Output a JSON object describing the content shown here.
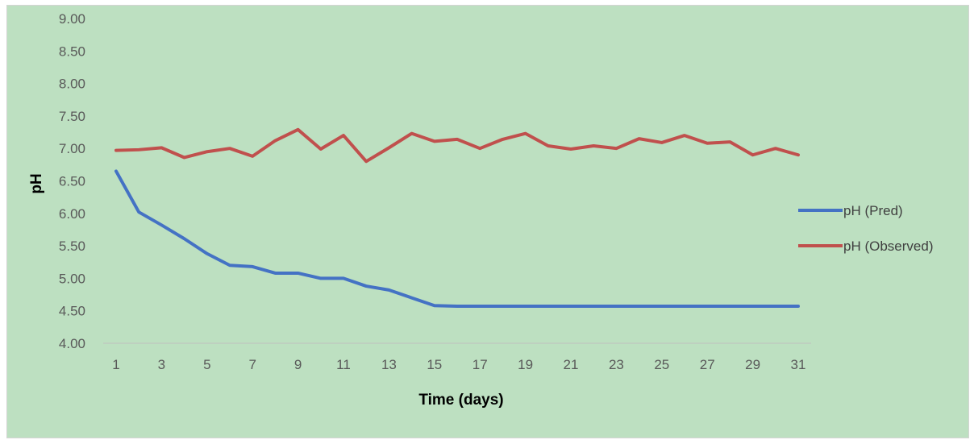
{
  "chart_data": {
    "type": "line",
    "title": "",
    "xlabel": "Time (days)",
    "ylabel": "pH",
    "ylim": [
      4.0,
      9.0
    ],
    "y_ticks": [
      "4.00",
      "4.50",
      "5.00",
      "5.50",
      "6.00",
      "6.50",
      "7.00",
      "7.50",
      "8.00",
      "8.50",
      "9.00"
    ],
    "x": [
      1,
      2,
      3,
      4,
      5,
      6,
      7,
      8,
      9,
      10,
      11,
      12,
      13,
      14,
      15,
      16,
      17,
      18,
      19,
      20,
      21,
      22,
      23,
      24,
      25,
      26,
      27,
      28,
      29,
      30,
      31
    ],
    "x_tick_labels": [
      "1",
      "3",
      "5",
      "7",
      "9",
      "11",
      "13",
      "15",
      "17",
      "19",
      "21",
      "23",
      "25",
      "27",
      "29",
      "31"
    ],
    "grid": false,
    "legend_position": "right",
    "series": [
      {
        "name": "pH (Pred)",
        "color": "#4472c4",
        "values": [
          6.65,
          6.02,
          5.82,
          5.61,
          5.38,
          5.2,
          5.18,
          5.08,
          5.08,
          5.0,
          5.0,
          4.88,
          4.82,
          4.7,
          4.58,
          4.57,
          4.57,
          4.57,
          4.57,
          4.57,
          4.57,
          4.57,
          4.57,
          4.57,
          4.57,
          4.57,
          4.57,
          4.57,
          4.57,
          4.57,
          4.57
        ]
      },
      {
        "name": "pH (Observed)",
        "color": "#c0504d",
        "values": [
          6.97,
          6.98,
          7.01,
          6.86,
          6.95,
          7.0,
          6.88,
          7.12,
          7.29,
          6.99,
          7.2,
          6.8,
          7.01,
          7.23,
          7.11,
          7.14,
          7.0,
          7.14,
          7.23,
          7.04,
          6.99,
          7.04,
          7.0,
          7.15,
          7.09,
          7.2,
          7.08,
          7.1,
          6.9,
          7.0,
          6.9
        ]
      }
    ]
  }
}
